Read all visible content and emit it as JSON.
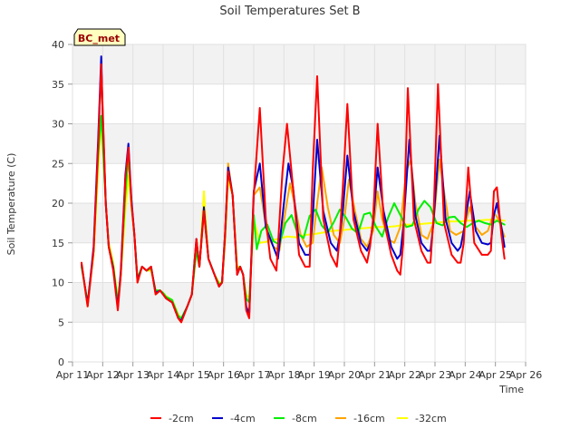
{
  "chart_data": {
    "type": "line",
    "title": "Soil Temperatures Set B",
    "xlabel": "Time",
    "ylabel": "Soil Temperature (C)",
    "badge": "BC_met",
    "xlim": [
      11,
      26
    ],
    "ylim": [
      0,
      40
    ],
    "x_ticks": [
      11,
      12,
      13,
      14,
      15,
      16,
      17,
      18,
      19,
      20,
      21,
      22,
      23,
      24,
      25,
      26
    ],
    "x_tick_labels": [
      "Apr 11",
      "Apr 12",
      "Apr 13",
      "Apr 14",
      "Apr 15",
      "Apr 16",
      "Apr 17",
      "Apr 18",
      "Apr 19",
      "Apr 20",
      "Apr 21",
      "Apr 22",
      "Apr 23",
      "Apr 24",
      "Apr 25",
      "Apr 26"
    ],
    "y_ticks": [
      0,
      5,
      10,
      15,
      20,
      25,
      30,
      35,
      40
    ],
    "y_tick_labels": [
      "0",
      "5",
      "10",
      "15",
      "20",
      "25",
      "30",
      "35",
      "40"
    ],
    "grid": true,
    "legend_position": "bottom",
    "series": [
      {
        "name": "-2cm",
        "color": "#ff0000",
        "x": [
          11.3,
          11.5,
          11.7,
          11.85,
          11.95,
          12.0,
          12.1,
          12.2,
          12.35,
          12.5,
          12.6,
          12.75,
          12.85,
          12.95,
          13.05,
          13.15,
          13.3,
          13.45,
          13.6,
          13.75,
          13.9,
          14.0,
          14.1,
          14.3,
          14.5,
          14.6,
          14.8,
          14.95,
          15.1,
          15.2,
          15.35,
          15.5,
          15.7,
          15.85,
          15.95,
          16.05,
          16.15,
          16.3,
          16.45,
          16.55,
          16.65,
          16.75,
          16.85,
          17.0,
          17.2,
          17.4,
          17.55,
          17.75,
          17.95,
          18.1,
          18.3,
          18.5,
          18.7,
          18.85,
          18.95,
          19.1,
          19.3,
          19.55,
          19.75,
          19.85,
          19.95,
          20.1,
          20.3,
          20.55,
          20.75,
          20.85,
          20.95,
          21.1,
          21.3,
          21.55,
          21.75,
          21.85,
          21.95,
          22.1,
          22.3,
          22.55,
          22.75,
          22.85,
          22.95,
          23.1,
          23.3,
          23.55,
          23.75,
          23.85,
          23.95,
          24.1,
          24.3,
          24.55,
          24.75,
          24.85,
          24.95,
          25.05,
          25.2,
          25.3
        ],
        "y": [
          12.5,
          7.0,
          14.0,
          27.0,
          37.5,
          32.0,
          20.0,
          14.5,
          11.5,
          6.5,
          11.0,
          23.0,
          27.0,
          20.0,
          16.0,
          10.0,
          12.0,
          11.5,
          12.0,
          8.5,
          9.0,
          8.5,
          8.0,
          7.5,
          5.5,
          5.0,
          7.0,
          8.5,
          15.5,
          12.0,
          19.0,
          13.0,
          11.0,
          9.5,
          10.0,
          16.0,
          24.0,
          21.0,
          11.0,
          12.0,
          11.0,
          6.5,
          5.5,
          21.0,
          32.0,
          18.0,
          13.0,
          11.5,
          24.0,
          30.0,
          22.0,
          13.5,
          12.0,
          12.0,
          24.0,
          36.0,
          18.0,
          13.5,
          12.0,
          16.0,
          22.0,
          32.5,
          18.0,
          14.0,
          12.5,
          14.5,
          18.0,
          30.0,
          18.0,
          13.5,
          11.5,
          11.0,
          15.0,
          34.5,
          18.0,
          14.0,
          12.5,
          12.5,
          18.0,
          35.0,
          17.5,
          13.5,
          12.5,
          12.5,
          15.0,
          24.5,
          15.0,
          13.5,
          13.5,
          14.0,
          21.5,
          22.0,
          16.0,
          13.0
        ]
      },
      {
        "name": "-4cm",
        "color": "#0000cc",
        "x": [
          11.3,
          11.5,
          11.7,
          11.85,
          11.95,
          12.0,
          12.1,
          12.2,
          12.35,
          12.5,
          12.6,
          12.75,
          12.85,
          12.95,
          13.05,
          13.15,
          13.3,
          13.45,
          13.6,
          13.75,
          13.9,
          14.0,
          14.1,
          14.3,
          14.5,
          14.6,
          14.8,
          14.95,
          15.1,
          15.2,
          15.35,
          15.5,
          15.7,
          15.85,
          15.95,
          16.05,
          16.15,
          16.3,
          16.45,
          16.55,
          16.65,
          16.75,
          16.85,
          17.0,
          17.2,
          17.4,
          17.6,
          17.8,
          18.0,
          18.15,
          18.3,
          18.5,
          18.7,
          18.85,
          18.95,
          19.1,
          19.3,
          19.55,
          19.75,
          19.85,
          19.95,
          20.1,
          20.3,
          20.55,
          20.75,
          20.85,
          20.95,
          21.1,
          21.3,
          21.55,
          21.75,
          21.85,
          21.95,
          22.15,
          22.35,
          22.55,
          22.75,
          22.85,
          22.95,
          23.15,
          23.35,
          23.55,
          23.75,
          23.85,
          23.95,
          24.15,
          24.35,
          24.55,
          24.75,
          24.85,
          24.95,
          25.05,
          25.2,
          25.3
        ],
        "y": [
          12.3,
          7.2,
          14.5,
          28.0,
          38.5,
          31.0,
          20.0,
          14.5,
          11.8,
          6.8,
          11.5,
          23.5,
          27.5,
          20.5,
          16.0,
          10.2,
          12.0,
          11.5,
          12.0,
          8.7,
          9.0,
          8.5,
          8.0,
          7.5,
          5.5,
          5.2,
          7.0,
          8.5,
          15.5,
          12.0,
          19.5,
          13.0,
          11.0,
          9.5,
          10.0,
          16.0,
          24.5,
          21.0,
          11.0,
          12.0,
          11.0,
          7.0,
          6.0,
          21.5,
          25.0,
          17.0,
          15.0,
          13.0,
          20.0,
          25.0,
          22.0,
          15.0,
          13.5,
          13.5,
          18.0,
          28.0,
          19.0,
          15.0,
          14.0,
          16.0,
          19.0,
          26.0,
          19.0,
          15.0,
          14.0,
          15.0,
          17.5,
          24.5,
          19.0,
          14.5,
          13.0,
          13.5,
          17.0,
          28.0,
          18.5,
          15.0,
          14.0,
          14.0,
          17.5,
          28.5,
          18.0,
          15.0,
          14.0,
          14.5,
          16.5,
          21.5,
          16.5,
          15.0,
          14.8,
          15.0,
          18.5,
          20.0,
          17.0,
          14.5
        ]
      },
      {
        "name": "-8cm",
        "color": "#00ee00",
        "x": [
          11.3,
          11.5,
          11.7,
          11.85,
          11.95,
          12.0,
          12.1,
          12.2,
          12.35,
          12.5,
          12.6,
          12.75,
          12.85,
          12.95,
          13.05,
          13.15,
          13.3,
          13.45,
          13.6,
          13.75,
          13.9,
          14.0,
          14.1,
          14.3,
          14.5,
          14.6,
          14.8,
          14.95,
          15.1,
          15.2,
          15.35,
          15.5,
          15.7,
          15.85,
          15.95,
          16.05,
          16.15,
          16.3,
          16.45,
          16.55,
          16.65,
          16.75,
          16.85,
          17.0,
          17.1,
          17.25,
          17.45,
          17.65,
          17.85,
          18.05,
          18.25,
          18.45,
          18.65,
          18.85,
          19.05,
          19.25,
          19.45,
          19.65,
          19.85,
          20.05,
          20.25,
          20.45,
          20.65,
          20.85,
          21.05,
          21.25,
          21.45,
          21.65,
          21.85,
          22.05,
          22.25,
          22.45,
          22.65,
          22.85,
          23.05,
          23.25,
          23.45,
          23.65,
          23.85,
          24.05,
          24.25,
          24.45,
          24.65,
          24.85,
          25.05,
          25.3
        ],
        "y": [
          12.0,
          7.5,
          14.0,
          26.0,
          31.0,
          28.0,
          20.0,
          14.5,
          12.0,
          7.5,
          11.0,
          21.0,
          26.0,
          20.0,
          16.0,
          10.5,
          12.0,
          11.5,
          11.8,
          9.0,
          9.0,
          8.7,
          8.2,
          7.8,
          5.8,
          5.5,
          7.0,
          8.5,
          14.0,
          12.0,
          19.0,
          13.0,
          11.0,
          9.8,
          10.0,
          15.5,
          24.0,
          21.0,
          11.5,
          12.0,
          11.0,
          8.0,
          7.5,
          18.5,
          14.2,
          16.5,
          17.3,
          15.2,
          14.8,
          17.5,
          18.5,
          16.2,
          15.6,
          18.4,
          19.2,
          17.2,
          16.3,
          17.6,
          19.2,
          18.2,
          16.8,
          16.2,
          18.6,
          18.8,
          17.0,
          15.8,
          18.2,
          20.0,
          18.5,
          17.0,
          17.2,
          19.2,
          20.3,
          19.5,
          17.5,
          17.2,
          18.2,
          18.3,
          17.5,
          17.0,
          17.5,
          17.8,
          17.5,
          17.3,
          17.8,
          17.3
        ]
      },
      {
        "name": "-16cm",
        "color": "#ffa500",
        "x": [
          11.3,
          11.5,
          11.7,
          11.85,
          11.95,
          12.0,
          12.1,
          12.2,
          12.35,
          12.5,
          12.6,
          12.75,
          12.85,
          12.95,
          13.05,
          13.15,
          13.3,
          13.45,
          13.6,
          13.75,
          13.9,
          14.0,
          14.1,
          14.3,
          14.5,
          14.6,
          14.8,
          14.95,
          15.1,
          15.2,
          15.35,
          15.5,
          15.7,
          15.85,
          15.95,
          16.05,
          16.15,
          16.3,
          16.45,
          16.55,
          16.65,
          16.75,
          16.85,
          17.0,
          17.2,
          17.45,
          17.65,
          17.85,
          18.05,
          18.2,
          18.35,
          18.55,
          18.75,
          18.95,
          19.1,
          19.25,
          19.45,
          19.65,
          19.85,
          20.0,
          20.15,
          20.35,
          20.55,
          20.75,
          20.95,
          21.1,
          21.25,
          21.45,
          21.65,
          21.85,
          22.05,
          22.2,
          22.35,
          22.55,
          22.75,
          22.95,
          23.15,
          23.3,
          23.5,
          23.7,
          23.95,
          24.15,
          24.35,
          24.55,
          24.75,
          24.95,
          25.1,
          25.3
        ],
        "y": [
          12.2,
          7.0,
          14.0,
          27.0,
          37.5,
          31.0,
          20.0,
          14.5,
          12.0,
          7.0,
          11.0,
          22.0,
          26.5,
          20.0,
          16.0,
          10.0,
          12.0,
          11.5,
          12.0,
          8.5,
          9.0,
          8.5,
          8.0,
          7.5,
          5.5,
          5.0,
          7.0,
          8.5,
          15.0,
          12.0,
          19.0,
          13.0,
          11.0,
          9.5,
          10.0,
          16.0,
          25.0,
          21.0,
          11.0,
          12.0,
          11.0,
          7.0,
          6.0,
          21.0,
          22.0,
          16.0,
          14.5,
          14.0,
          19.0,
          22.5,
          20.0,
          16.0,
          14.5,
          15.0,
          20.0,
          24.5,
          19.5,
          16.0,
          15.0,
          18.0,
          23.0,
          19.0,
          15.5,
          14.5,
          16.5,
          21.5,
          18.0,
          15.5,
          15.0,
          17.0,
          24.0,
          25.5,
          20.0,
          16.0,
          15.5,
          17.5,
          25.5,
          21.5,
          16.5,
          16.0,
          16.5,
          19.5,
          17.0,
          16.0,
          16.5,
          18.8,
          18.0,
          15.8
        ]
      },
      {
        "name": "-32cm",
        "color": "#ffff00",
        "x": [
          11.3,
          11.5,
          11.7,
          11.85,
          11.95,
          12.0,
          12.1,
          12.2,
          12.35,
          12.5,
          12.6,
          12.75,
          12.85,
          12.95,
          13.05,
          13.15,
          13.3,
          13.45,
          13.6,
          13.75,
          13.9,
          14.0,
          14.1,
          14.3,
          14.5,
          14.6,
          14.8,
          14.95,
          15.1,
          15.2,
          15.35,
          15.5,
          15.7,
          15.85,
          15.95,
          16.05,
          16.15,
          16.3,
          16.45,
          16.55,
          16.65,
          16.75,
          16.85,
          17.0,
          17.2,
          17.5,
          17.8,
          18.1,
          18.4,
          18.7,
          19.0,
          19.3,
          19.6,
          19.9,
          20.2,
          20.5,
          20.8,
          21.1,
          21.4,
          21.7,
          22.0,
          22.3,
          22.6,
          22.9,
          23.2,
          23.5,
          23.8,
          24.1,
          24.4,
          24.7,
          25.0,
          25.3
        ],
        "y": [
          12.0,
          7.5,
          13.5,
          24.0,
          30.5,
          27.0,
          20.0,
          15.0,
          12.5,
          8.0,
          11.0,
          19.0,
          23.5,
          19.5,
          16.0,
          10.5,
          12.0,
          11.5,
          11.5,
          9.0,
          9.0,
          8.7,
          8.3,
          7.8,
          6.0,
          5.5,
          7.0,
          8.5,
          14.0,
          12.0,
          21.5,
          13.0,
          11.0,
          10.0,
          10.0,
          15.0,
          23.0,
          21.0,
          12.0,
          12.0,
          11.0,
          8.5,
          8.0,
          18.0,
          15.0,
          15.2,
          15.5,
          15.8,
          15.7,
          16.0,
          16.1,
          16.3,
          16.5,
          16.6,
          16.7,
          16.8,
          16.9,
          17.0,
          17.0,
          17.1,
          17.3,
          17.3,
          17.4,
          17.5,
          17.6,
          17.7,
          17.7,
          17.8,
          17.8,
          17.9,
          17.9,
          17.8
        ]
      }
    ]
  }
}
